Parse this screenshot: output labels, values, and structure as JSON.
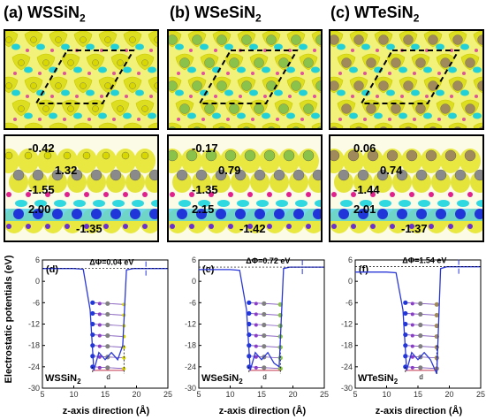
{
  "panels": [
    {
      "letter": "(a)",
      "name": "WSSiN",
      "sub": "2",
      "charges": [
        "-0.42",
        "1.32",
        "-1.55",
        "2.00",
        "-1.35"
      ],
      "dphi": "ΔΦ=0.04 eV",
      "plot_letter": "(d)",
      "chalcogen": "#d8d800"
    },
    {
      "letter": "(b)",
      "name": "WSeSiN",
      "sub": "2",
      "charges": [
        "-0.17",
        "0.79",
        "-1.35",
        "2.15",
        "-1.42"
      ],
      "dphi": "ΔΦ=0.72 eV",
      "plot_letter": "(e)",
      "chalcogen": "#8bc34a"
    },
    {
      "letter": "(c)",
      "name": "WTeSiN",
      "sub": "2",
      "charges": [
        "0.06",
        "0.74",
        "-1.44",
        "2.01",
        "-1.37"
      ],
      "dphi": "ΔΦ=1.54 eV",
      "plot_letter": "(f)",
      "chalcogen": "#a0895a"
    }
  ],
  "axes": {
    "ylabel": "Electrostatic potentials (eV)",
    "xlabel": "z-axis direction (Å)",
    "xticks": [
      "5",
      "10",
      "15",
      "20",
      "25"
    ],
    "yticks": [
      "6",
      "0",
      "-6",
      "-12",
      "-18",
      "-24",
      "-30"
    ],
    "d_label": "d"
  },
  "chart_data": [
    {
      "type": "line",
      "title": "(d)",
      "xlabel": "z-axis direction (Å)",
      "ylabel": "Electrostatic potentials (eV)",
      "xlim": [
        5,
        25
      ],
      "ylim": [
        -30,
        6
      ],
      "annotation": "ΔΦ=0.04 eV",
      "x": [
        5,
        10,
        11.5,
        12.6,
        13.2,
        14,
        15,
        16,
        17,
        17.8,
        18.4,
        19.5,
        25
      ],
      "y": [
        3.6,
        3.6,
        3.4,
        -8,
        -25,
        -20,
        -22,
        -20,
        -22,
        -18,
        3.2,
        3.6,
        3.6
      ]
    },
    {
      "type": "line",
      "title": "(e)",
      "xlabel": "z-axis direction (Å)",
      "ylabel": "",
      "xlim": [
        5,
        25
      ],
      "ylim": [
        -30,
        6
      ],
      "annotation": "ΔΦ=0.72 eV",
      "x": [
        5,
        10,
        11.5,
        12.6,
        13.2,
        14,
        15,
        16,
        17,
        17.8,
        18.5,
        19.5,
        25
      ],
      "y": [
        3.3,
        3.3,
        3.1,
        -8,
        -25,
        -20,
        -22,
        -20,
        -23,
        -24,
        3.6,
        4.0,
        4.0
      ]
    },
    {
      "type": "line",
      "title": "(f)",
      "xlabel": "z-axis direction (Å)",
      "ylabel": "",
      "xlim": [
        5,
        25
      ],
      "ylim": [
        -30,
        6
      ],
      "annotation": "ΔΦ=1.54 eV",
      "x": [
        5,
        10,
        11.5,
        12.6,
        13.2,
        14,
        15,
        16,
        17,
        18,
        18.6,
        19.6,
        25
      ],
      "y": [
        2.6,
        2.6,
        2.4,
        -8,
        -25,
        -20,
        -22,
        -20,
        -22,
        -26,
        3.6,
        4.1,
        4.1
      ]
    }
  ]
}
